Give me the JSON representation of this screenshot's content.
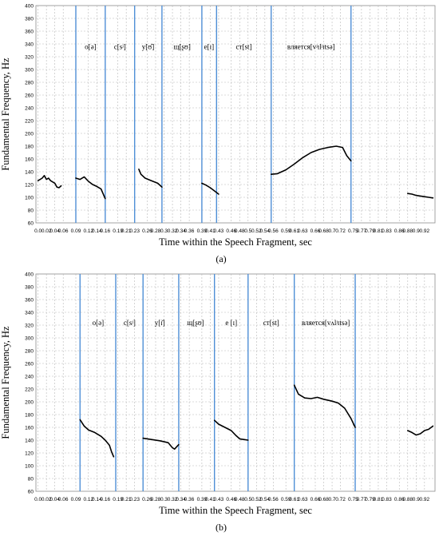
{
  "chart_data": [
    {
      "type": "line",
      "panel_label": "(a)",
      "xlabel": "Time within the Speech Fragment, sec",
      "ylabel": "Fundamental Frequency, Hz",
      "ylim": [
        60,
        400
      ],
      "xlim": [
        -0.005,
        0.945
      ],
      "grid": true,
      "x_ticks": [
        0.0,
        0.02,
        0.04,
        0.06,
        0.09,
        0.12,
        0.14,
        0.16,
        0.19,
        0.21,
        0.23,
        0.26,
        0.28,
        0.3,
        0.32,
        0.34,
        0.36,
        0.39,
        0.41,
        0.43,
        0.46,
        0.48,
        0.5,
        0.52,
        0.54,
        0.56,
        0.59,
        0.61,
        0.63,
        0.66,
        0.68,
        0.7,
        0.72,
        0.75,
        0.77,
        0.79,
        0.81,
        0.83,
        0.86,
        0.88,
        0.9,
        0.92
      ],
      "x_tick_labels": [
        "0.0",
        "0.02",
        "0.04",
        "0.06",
        "0.09",
        "0.12",
        "0.14",
        "0.16",
        "0.19",
        "0.21",
        "0.23",
        "0.26",
        "0.28",
        "0.3",
        "0.32",
        "0.34",
        "0.36",
        "0.39",
        "0.41",
        "0.43",
        "0.46",
        "0.48",
        "0.5",
        "0.52",
        "0.54",
        "0.56",
        "0.59",
        "0.61",
        "0.63",
        "0.66",
        "0.68",
        "0.7",
        "0.72",
        "0.75",
        "0.77",
        "0.79",
        "0.81",
        "0.83",
        "0.86",
        "0.88",
        "0.9",
        "0.92"
      ],
      "y_ticks": [
        60,
        80,
        100,
        120,
        140,
        160,
        180,
        200,
        220,
        240,
        260,
        280,
        300,
        320,
        340,
        360,
        380,
        400
      ],
      "boundaries": [
        0.09,
        0.16,
        0.23,
        0.295,
        0.39,
        0.425,
        0.555,
        0.745
      ],
      "segment_labels": [
        {
          "x": 0.125,
          "y": 332,
          "text": "о[ə]"
        },
        {
          "x": 0.195,
          "y": 332,
          "text": "с[sʲ]"
        },
        {
          "x": 0.262,
          "y": 332,
          "text": "у[ʊ̆]"
        },
        {
          "x": 0.343,
          "y": 332,
          "text": "щ[ʂʊ]"
        },
        {
          "x": 0.407,
          "y": 332,
          "text": "е[ɪ]"
        },
        {
          "x": 0.49,
          "y": 332,
          "text": "ст[st]"
        },
        {
          "x": 0.65,
          "y": 332,
          "text": "вляется[vʲɪlʲɪtsə]"
        }
      ],
      "series": [
        {
          "values": [
            [
              0.0,
              126
            ],
            [
              0.01,
              130
            ],
            [
              0.015,
              134
            ],
            [
              0.02,
              128
            ],
            [
              0.025,
              130
            ],
            [
              0.03,
              126
            ],
            [
              0.04,
              122
            ],
            [
              0.045,
              116
            ],
            [
              0.05,
              115
            ],
            [
              0.055,
              118
            ]
          ]
        },
        {
          "values": [
            [
              0.09,
              130
            ],
            [
              0.1,
              128
            ],
            [
              0.11,
              132
            ],
            [
              0.12,
              125
            ],
            [
              0.13,
              120
            ],
            [
              0.14,
              117
            ],
            [
              0.15,
              113
            ],
            [
              0.16,
              98
            ]
          ]
        },
        {
          "values": [
            [
              0.24,
              144
            ],
            [
              0.245,
              136
            ],
            [
              0.255,
              130
            ],
            [
              0.27,
              126
            ],
            [
              0.285,
              122
            ],
            [
              0.295,
              116
            ]
          ]
        },
        {
          "values": [
            [
              0.39,
              122
            ],
            [
              0.4,
              119
            ],
            [
              0.41,
              115
            ],
            [
              0.42,
              110
            ],
            [
              0.43,
              105
            ]
          ]
        },
        {
          "values": [
            [
              0.555,
              136
            ],
            [
              0.57,
              137
            ],
            [
              0.59,
              143
            ],
            [
              0.61,
              152
            ],
            [
              0.63,
              162
            ],
            [
              0.65,
              170
            ],
            [
              0.67,
              175
            ],
            [
              0.69,
              178
            ],
            [
              0.71,
              180
            ],
            [
              0.725,
              178
            ],
            [
              0.735,
              165
            ],
            [
              0.745,
              157
            ]
          ]
        },
        {
          "values": [
            [
              0.88,
              106
            ],
            [
              0.89,
              105
            ],
            [
              0.9,
              103
            ],
            [
              0.91,
              102
            ],
            [
              0.92,
              101
            ],
            [
              0.93,
              100
            ],
            [
              0.94,
              99
            ]
          ]
        }
      ]
    },
    {
      "type": "line",
      "panel_label": "(b)",
      "xlabel": "Time within the Speech Fragment, sec",
      "ylabel": "Fundamental Frequency, Hz",
      "ylim": [
        60,
        400
      ],
      "xlim": [
        -0.005,
        0.945
      ],
      "grid": true,
      "x_ticks": [
        0.0,
        0.02,
        0.04,
        0.06,
        0.09,
        0.12,
        0.14,
        0.16,
        0.19,
        0.21,
        0.23,
        0.26,
        0.28,
        0.3,
        0.32,
        0.34,
        0.36,
        0.39,
        0.41,
        0.43,
        0.46,
        0.48,
        0.5,
        0.52,
        0.54,
        0.56,
        0.59,
        0.61,
        0.63,
        0.66,
        0.68,
        0.7,
        0.72,
        0.75,
        0.77,
        0.79,
        0.81,
        0.83,
        0.86,
        0.88,
        0.9,
        0.92
      ],
      "x_tick_labels": [
        "0.0",
        "0.02",
        "0.04",
        "0.06",
        "0.09",
        "0.12",
        "0.14",
        "0.16",
        "0.19",
        "0.21",
        "0.23",
        "0.26",
        "0.28",
        "0.3",
        "0.32",
        "0.34",
        "0.36",
        "0.39",
        "0.41",
        "0.43",
        "0.46",
        "0.48",
        "0.5",
        "0.52",
        "0.54",
        "0.56",
        "0.59",
        "0.61",
        "0.63",
        "0.66",
        "0.68",
        "0.7",
        "0.72",
        "0.75",
        "0.77",
        "0.79",
        "0.81",
        "0.83",
        "0.86",
        "0.88",
        "0.9",
        "0.92"
      ],
      "y_ticks": [
        60,
        80,
        100,
        120,
        140,
        160,
        180,
        200,
        220,
        240,
        260,
        280,
        300,
        320,
        340,
        360,
        380,
        400
      ],
      "boundaries": [
        0.1,
        0.185,
        0.25,
        0.335,
        0.42,
        0.5,
        0.61,
        0.755
      ],
      "segment_labels": [
        {
          "x": 0.143,
          "y": 320,
          "text": "о[ə]"
        },
        {
          "x": 0.218,
          "y": 320,
          "text": "с[sʲ]"
        },
        {
          "x": 0.29,
          "y": 320,
          "text": "у[ɪ̆]"
        },
        {
          "x": 0.375,
          "y": 320,
          "text": "щ[ʂʊ]"
        },
        {
          "x": 0.46,
          "y": 320,
          "text": "е [ɪ]"
        },
        {
          "x": 0.555,
          "y": 320,
          "text": "ст[st]"
        },
        {
          "x": 0.685,
          "y": 320,
          "text": "вляется[vʌlʲɪtsə]"
        }
      ],
      "series": [
        {
          "values": [
            [
              0.1,
              172
            ],
            [
              0.11,
              162
            ],
            [
              0.12,
              156
            ],
            [
              0.135,
              152
            ],
            [
              0.15,
              146
            ],
            [
              0.16,
              140
            ],
            [
              0.17,
              132
            ],
            [
              0.175,
              122
            ],
            [
              0.18,
              114
            ]
          ]
        },
        {
          "values": [
            [
              0.25,
              143
            ],
            [
              0.27,
              141
            ],
            [
              0.29,
              139
            ],
            [
              0.31,
              136
            ],
            [
              0.32,
              128
            ],
            [
              0.325,
              126
            ],
            [
              0.335,
              133
            ]
          ]
        },
        {
          "values": [
            [
              0.42,
              171
            ],
            [
              0.43,
              165
            ],
            [
              0.445,
              160
            ],
            [
              0.46,
              155
            ],
            [
              0.47,
              148
            ],
            [
              0.48,
              142
            ],
            [
              0.49,
              141
            ],
            [
              0.5,
              140
            ]
          ]
        },
        {
          "values": [
            [
              0.61,
              226
            ],
            [
              0.62,
              212
            ],
            [
              0.635,
              206
            ],
            [
              0.65,
              205
            ],
            [
              0.665,
              207
            ],
            [
              0.68,
              204
            ],
            [
              0.7,
              201
            ],
            [
              0.715,
              198
            ],
            [
              0.73,
              190
            ],
            [
              0.745,
              174
            ],
            [
              0.755,
              160
            ]
          ]
        },
        {
          "values": [
            [
              0.88,
              155
            ],
            [
              0.89,
              152
            ],
            [
              0.9,
              148
            ],
            [
              0.91,
              150
            ],
            [
              0.92,
              155
            ],
            [
              0.93,
              157
            ],
            [
              0.94,
              162
            ]
          ]
        }
      ]
    }
  ]
}
